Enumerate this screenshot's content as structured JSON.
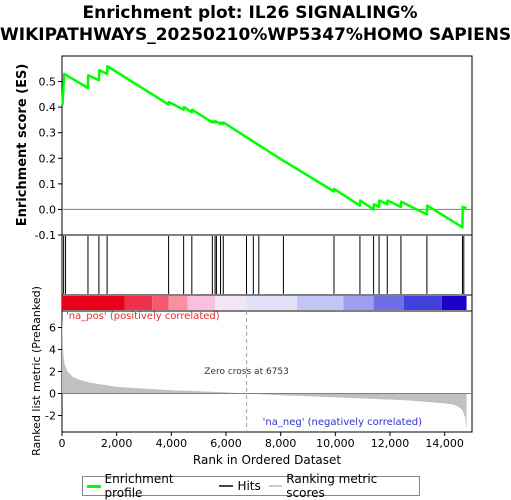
{
  "chart_data": {
    "type": "line",
    "title_line1": "Enrichment plot: IL26 SIGNALING%",
    "title_line2": "WIKIPATHWAYS_20250210%WP5347%HOMO SAPIENS",
    "es_ylabel": "Enrichment score (ES)",
    "rank_ylabel": "Ranked list metric (PreRanked)",
    "xlabel": "Rank in Ordered Dataset",
    "xlim": [
      0,
      15000
    ],
    "x_ticks": [
      0,
      2000,
      4000,
      6000,
      8000,
      10000,
      12000,
      14000
    ],
    "x_tick_labels": [
      "0",
      "2,000",
      "4,000",
      "6,000",
      "8,000",
      "10,000",
      "12,000",
      "14,000"
    ],
    "es_ylim": [
      -0.1,
      0.6
    ],
    "es_ticks": [
      -0.1,
      0.0,
      0.1,
      0.2,
      0.3,
      0.4,
      0.5
    ],
    "es_tick_labels": [
      "-0.1",
      "0.0",
      "0.1",
      "0.2",
      "0.3",
      "0.4",
      "0.5"
    ],
    "rank_ylim": [
      -3.5,
      7.5
    ],
    "rank_ticks": [
      -2,
      0,
      2,
      4,
      6
    ],
    "rank_tick_labels": [
      "-2",
      "0",
      "2",
      "4",
      "6"
    ],
    "series": [
      {
        "name": "Enrichment profile",
        "color": "#00ff00",
        "x": [
          0,
          20,
          80,
          950,
          960,
          1350,
          1360,
          1650,
          1660,
          3900,
          3910,
          4450,
          4460,
          4750,
          4760,
          5500,
          5510,
          5600,
          5610,
          5800,
          5810,
          5900,
          5910,
          8100,
          8110,
          9950,
          9960,
          10900,
          10910,
          11400,
          11410,
          11600,
          11610,
          11900,
          11910,
          12400,
          12410,
          13350,
          13360,
          14650,
          14660,
          14800
        ],
        "y": [
          0.41,
          0.41,
          0.53,
          0.475,
          0.525,
          0.505,
          0.545,
          0.53,
          0.56,
          0.41,
          0.42,
          0.39,
          0.4,
          0.38,
          0.39,
          0.34,
          0.345,
          0.34,
          0.345,
          0.335,
          0.34,
          0.335,
          0.34,
          0.19,
          0.19,
          0.07,
          0.08,
          0.015,
          0.035,
          0.0,
          0.02,
          0.01,
          0.035,
          0.02,
          0.035,
          0.01,
          0.03,
          -0.02,
          0.015,
          -0.07,
          0.01,
          0.005
        ]
      }
    ],
    "hits": [
      60,
      130,
      950,
      1350,
      1650,
      3900,
      4450,
      4750,
      5500,
      5600,
      5650,
      5800,
      5900,
      6750,
      7000,
      7200,
      8100,
      9950,
      10900,
      11400,
      11600,
      11900,
      12400,
      13350,
      14650,
      14700
    ],
    "ranked_metric": {
      "x": [
        0,
        50,
        100,
        200,
        400,
        700,
        1000,
        1500,
        2000,
        3000,
        4000,
        5000,
        6000,
        6753,
        7500,
        8500,
        9500,
        10500,
        11500,
        12500,
        13500,
        14000,
        14300,
        14500,
        14650,
        14750,
        14800
      ],
      "y": [
        7.0,
        3.5,
        2.6,
        2.0,
        1.5,
        1.2,
        1.0,
        0.8,
        0.6,
        0.45,
        0.3,
        0.2,
        0.1,
        0.0,
        -0.1,
        -0.2,
        -0.3,
        -0.4,
        -0.5,
        -0.6,
        -0.8,
        -0.9,
        -1.0,
        -1.2,
        -1.5,
        -2.2,
        -3.4
      ]
    },
    "zero_cross_label": "Zero cross at 6753",
    "zero_cross_x": 6753,
    "na_pos_label": "'na_pos' (positively correlated)",
    "na_neg_label": "'na_neg' (negatively correlated)",
    "heatmap_colors": [
      "#e8001c",
      "#f0304a",
      "#f55a72",
      "#fb90a0",
      "#f8c0dc",
      "#f2e6f2",
      "#e2e2fb",
      "#c4c4f5",
      "#9e9ef0",
      "#6e6ee6",
      "#4040dc",
      "#1a00c8"
    ],
    "heatmap_breaks": [
      0,
      2300,
      3300,
      3900,
      4600,
      5600,
      6750,
      8600,
      10300,
      11400,
      12500,
      13900,
      14800
    ],
    "legend": [
      {
        "label": "Enrichment profile",
        "color": "#00ff00"
      },
      {
        "label": "Hits",
        "color": "#444444"
      },
      {
        "label": "Ranking metric scores",
        "color": "#cccccc"
      }
    ]
  }
}
